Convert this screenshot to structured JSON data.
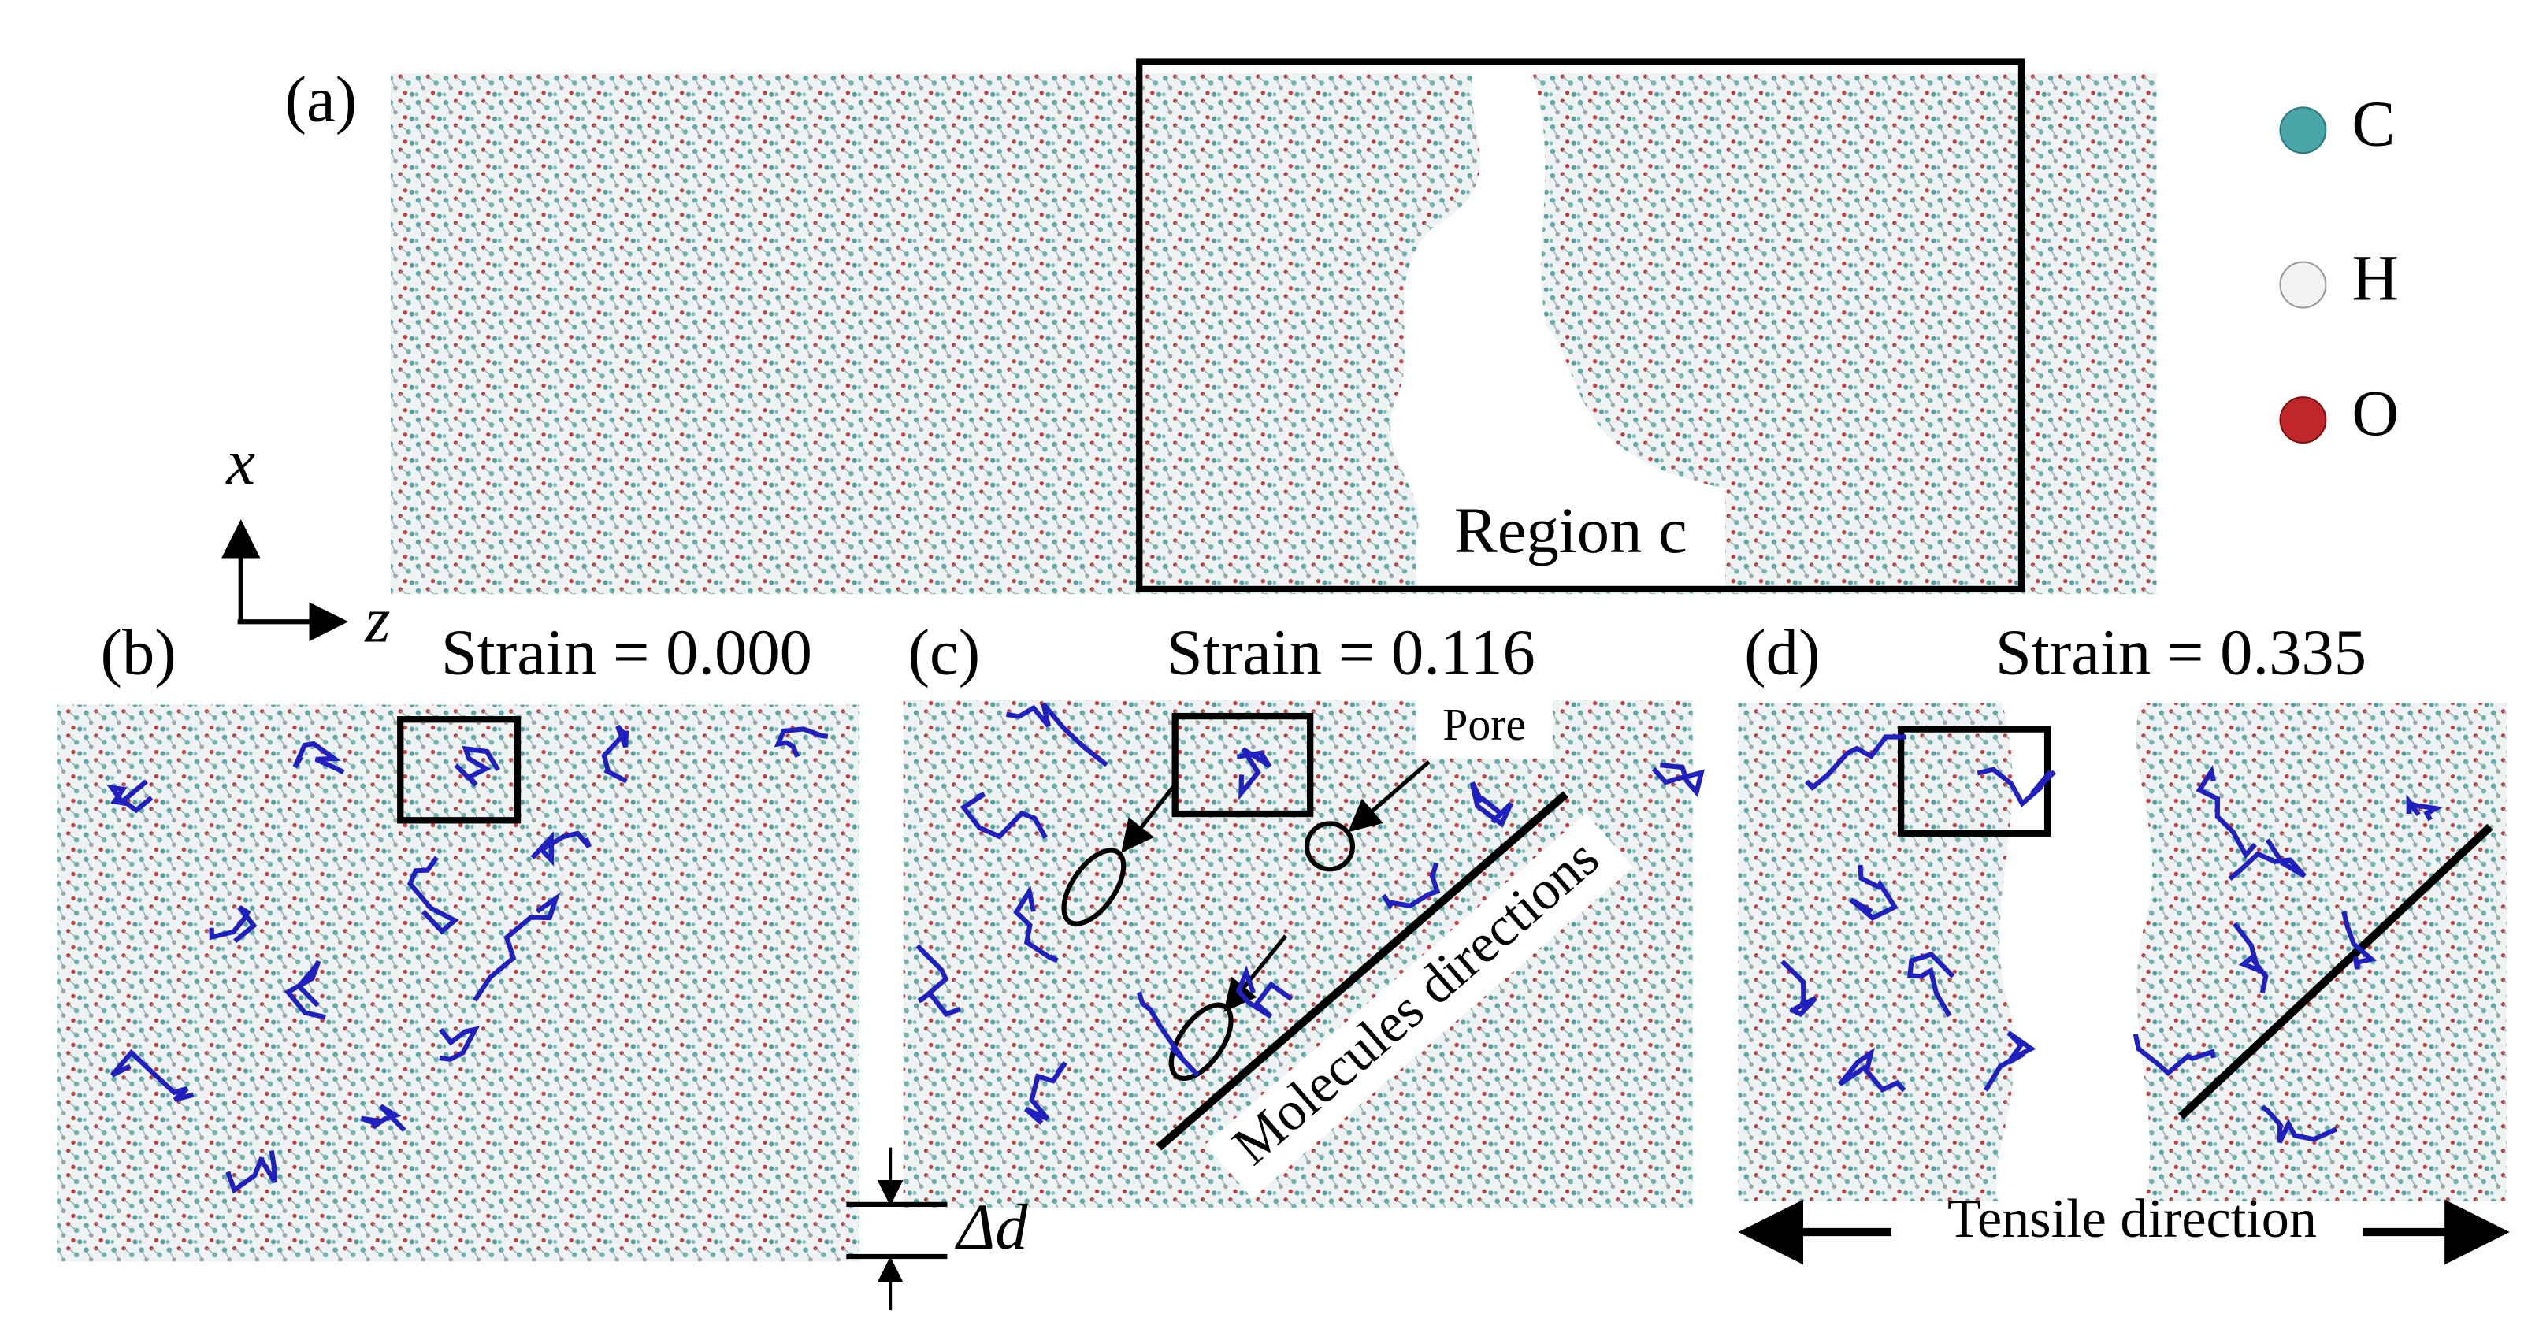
{
  "panel_a": {
    "label": "(a)",
    "region_label": "Region c"
  },
  "legend": [
    "C",
    "H",
    "O"
  ],
  "axes": {
    "vertical": "x",
    "horizontal": "z"
  },
  "panels": [
    {
      "label": "(b)",
      "strain": "Strain = 0.000"
    },
    {
      "label": "(c)",
      "strain": "Strain = 0.116"
    },
    {
      "label": "(d)",
      "strain": "Strain = 0.335"
    }
  ],
  "annotations": {
    "pore": "Pore",
    "molecules_directions": "Molecules directions",
    "delta_d": "Δd",
    "tensile_direction": "Tensile direction"
  }
}
